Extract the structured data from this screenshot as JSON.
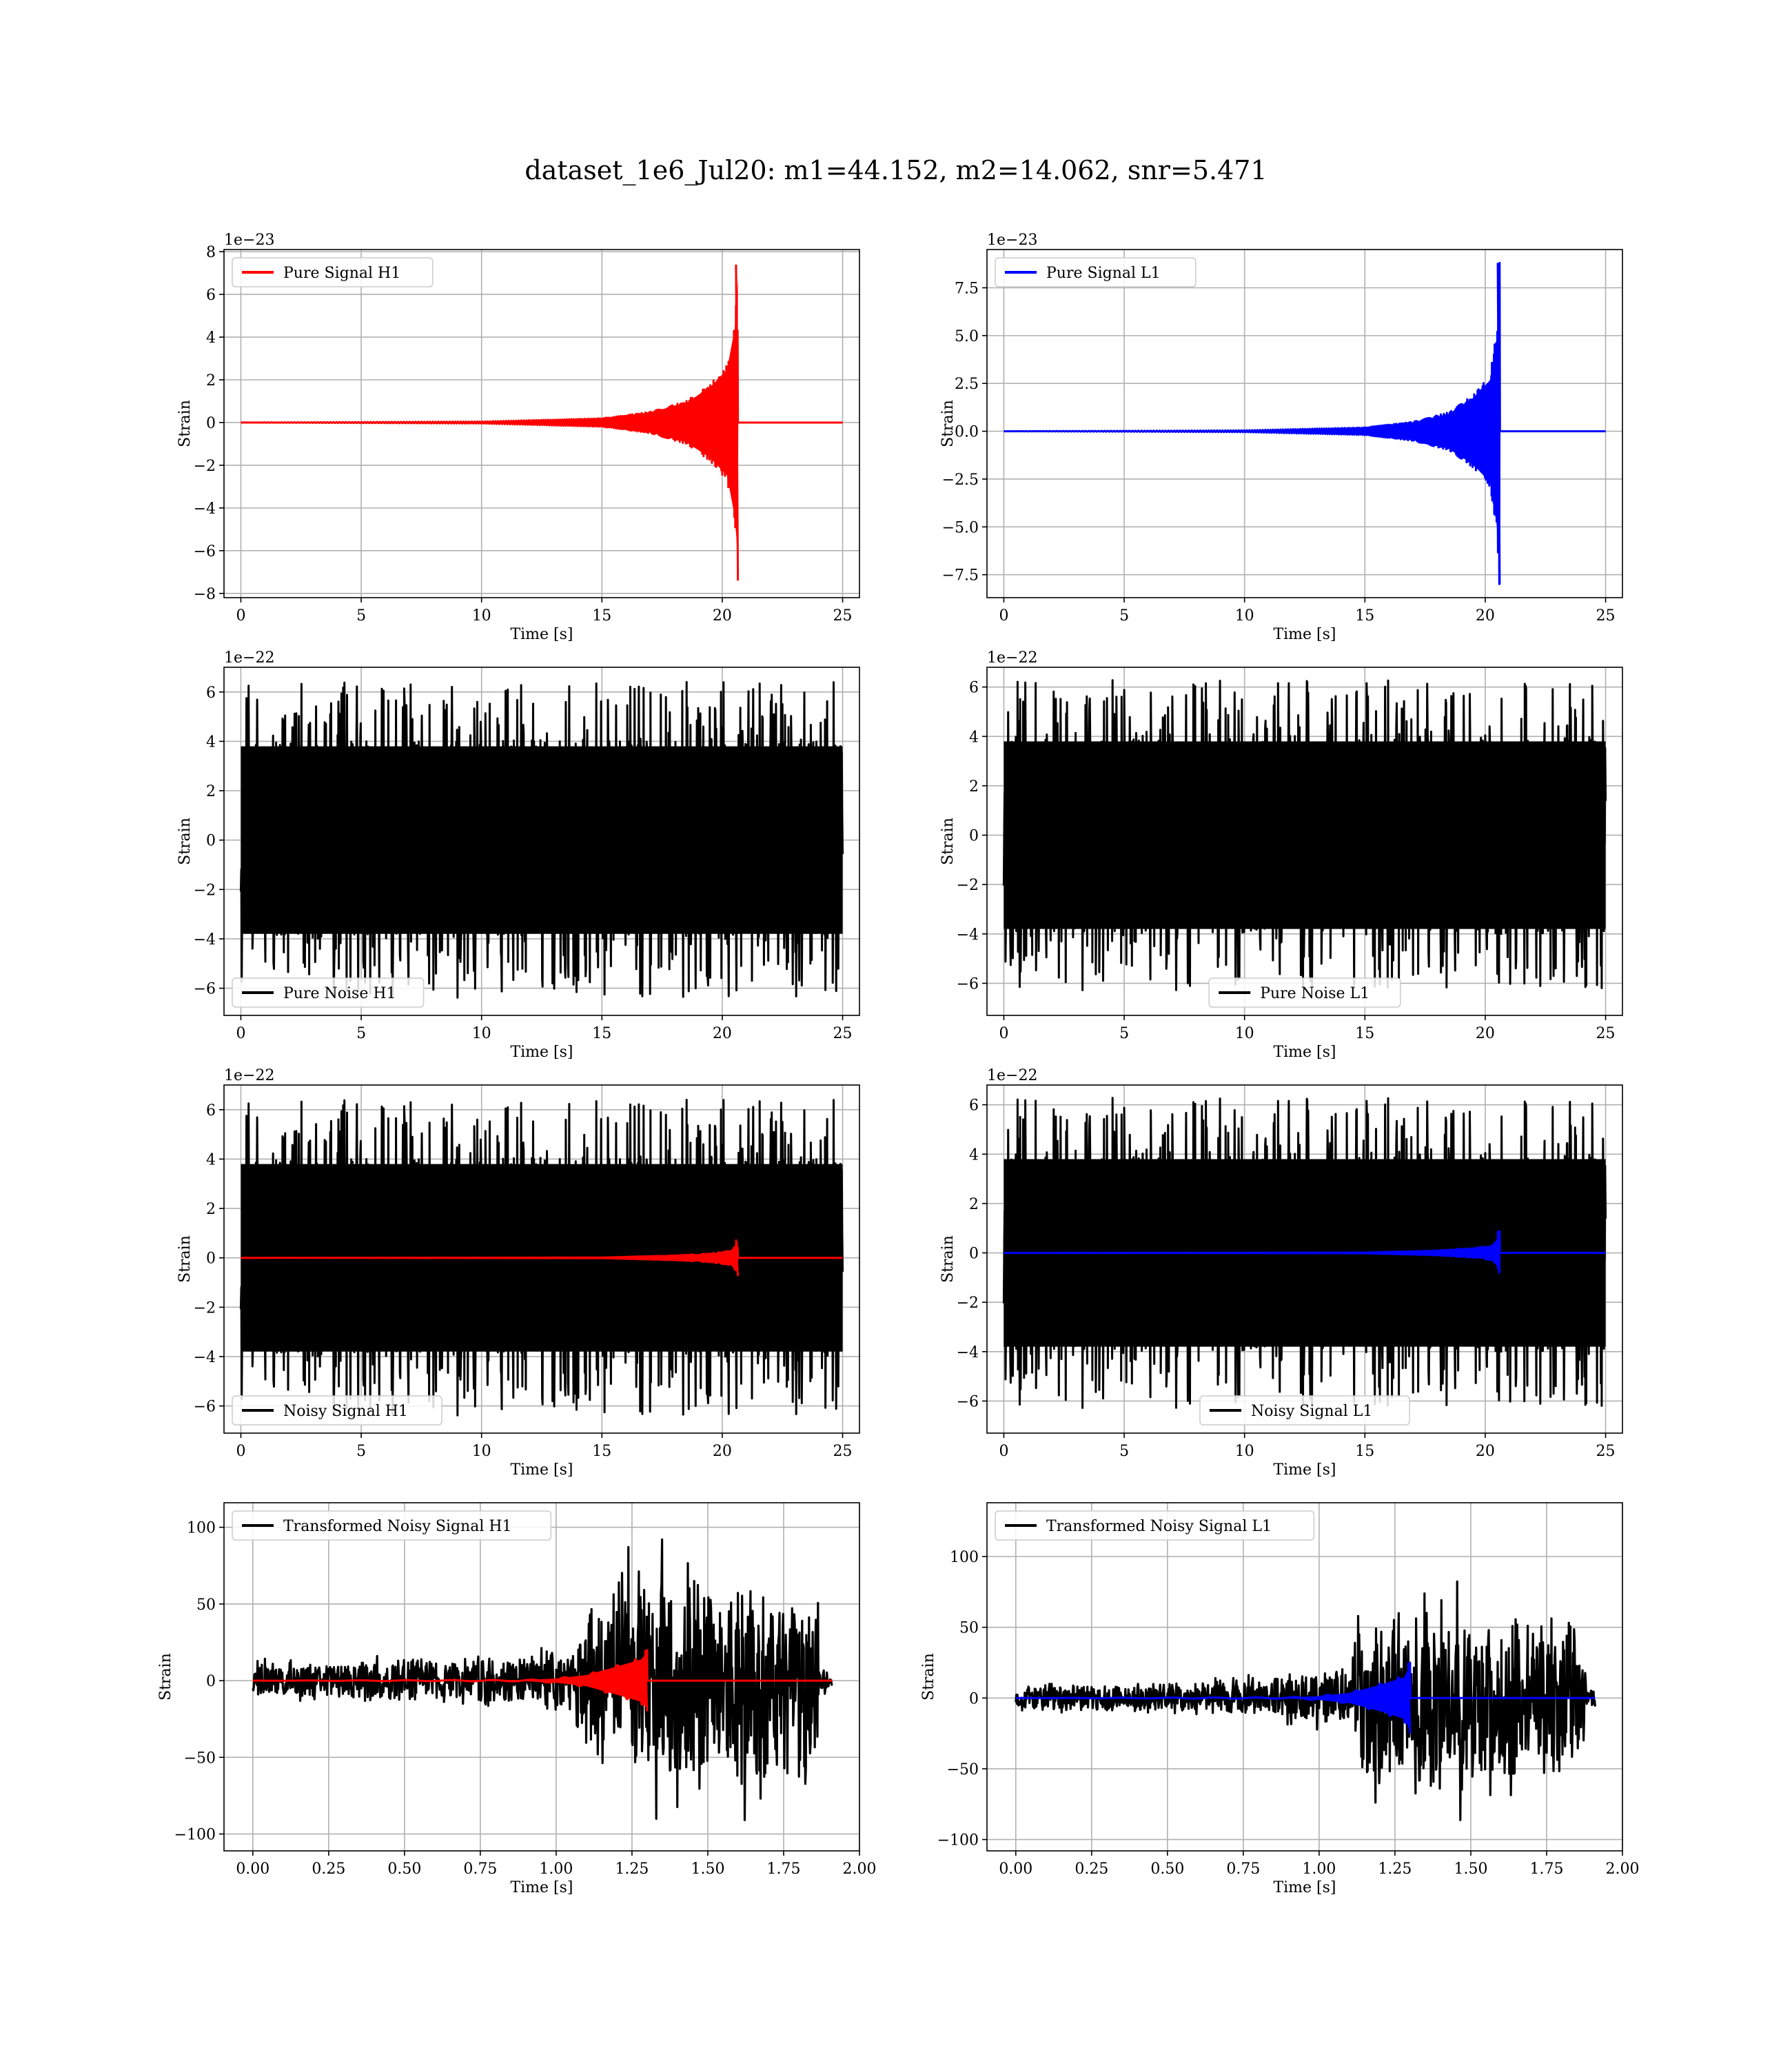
{
  "figure": {
    "title": "dataset_1e6_Jul20: m1=44.152, m2=14.062, snr=5.471"
  },
  "chart_data": [
    {
      "type": "line",
      "panel": "pure-signal-h1",
      "xlabel": "Time [s]",
      "ylabel": "Strain",
      "offset_text": "1e−23",
      "xlim": [
        -0.7,
        25.7
      ],
      "ylim": [
        -8.2,
        8.1
      ],
      "xticks": [
        0,
        5,
        10,
        15,
        20,
        25
      ],
      "xtick_labels": [
        "0",
        "5",
        "10",
        "15",
        "20",
        "25"
      ],
      "yticks": [
        -8,
        -6,
        -4,
        -2,
        0,
        2,
        4,
        6,
        8
      ],
      "ytick_labels": [
        "−8",
        "−6",
        "−4",
        "−2",
        "0",
        "2",
        "4",
        "6",
        "8"
      ],
      "grid": true,
      "legend_position": "upper left",
      "series": [
        {
          "name": "Pure Signal H1",
          "color": "#ff0000",
          "kind": "chirp",
          "x_end": 25,
          "merger_time": 20.65,
          "peak_amplitude": 7.4,
          "neg_peak_amplitude": -7.4,
          "envelope": [
            [
              0,
              0
            ],
            [
              10,
              0.05
            ],
            [
              15,
              0.2
            ],
            [
              17,
              0.5
            ],
            [
              18.5,
              1.0
            ],
            [
              19.5,
              1.8
            ],
            [
              20.2,
              2.7
            ],
            [
              20.55,
              5.0
            ],
            [
              20.65,
              7.4
            ]
          ]
        }
      ]
    },
    {
      "type": "line",
      "panel": "pure-signal-l1",
      "xlabel": "Time [s]",
      "ylabel": "Strain",
      "offset_text": "1e−23",
      "xlim": [
        -0.7,
        25.7
      ],
      "ylim": [
        -8.7,
        9.5
      ],
      "xticks": [
        0,
        5,
        10,
        15,
        20,
        25
      ],
      "xtick_labels": [
        "0",
        "5",
        "10",
        "15",
        "20",
        "25"
      ],
      "yticks": [
        -7.5,
        -5.0,
        -2.5,
        0.0,
        2.5,
        5.0,
        7.5
      ],
      "ytick_labels": [
        "−7.5",
        "−5.0",
        "−2.5",
        "0.0",
        "2.5",
        "5.0",
        "7.5"
      ],
      "grid": true,
      "legend_position": "upper left",
      "series": [
        {
          "name": "Pure Signal L1",
          "color": "#0000ff",
          "kind": "chirp",
          "x_end": 25,
          "merger_time": 20.6,
          "peak_amplitude": 8.8,
          "neg_peak_amplitude": -8.0,
          "envelope": [
            [
              0,
              0
            ],
            [
              10,
              0.05
            ],
            [
              15,
              0.2
            ],
            [
              17,
              0.5
            ],
            [
              18.5,
              1.0
            ],
            [
              19.5,
              1.9
            ],
            [
              20.2,
              2.9
            ],
            [
              20.5,
              5.5
            ],
            [
              20.6,
              8.8
            ]
          ]
        }
      ]
    },
    {
      "type": "line",
      "panel": "pure-noise-h1",
      "xlabel": "Time [s]",
      "ylabel": "Strain",
      "offset_text": "1e−22",
      "xlim": [
        -0.7,
        25.7
      ],
      "ylim": [
        -7.1,
        7.0
      ],
      "xticks": [
        0,
        5,
        10,
        15,
        20,
        25
      ],
      "xtick_labels": [
        "0",
        "5",
        "10",
        "15",
        "20",
        "25"
      ],
      "yticks": [
        -6,
        -4,
        -2,
        0,
        2,
        4,
        6
      ],
      "ytick_labels": [
        "−6",
        "−4",
        "−2",
        "0",
        "2",
        "4",
        "6"
      ],
      "grid": true,
      "legend_position": "lower left",
      "series": [
        {
          "name": "Pure Noise H1",
          "color": "#000000",
          "kind": "noise",
          "x_end": 25,
          "core_amplitude": 4.0,
          "max_amplitude": 6.4,
          "min_amplitude": -6.6,
          "seed": 11
        }
      ]
    },
    {
      "type": "line",
      "panel": "pure-noise-l1",
      "xlabel": "Time [s]",
      "ylabel": "Strain",
      "offset_text": "1e−22",
      "xlim": [
        -0.7,
        25.7
      ],
      "ylim": [
        -7.3,
        6.8
      ],
      "xticks": [
        0,
        5,
        10,
        15,
        20,
        25
      ],
      "xtick_labels": [
        "0",
        "5",
        "10",
        "15",
        "20",
        "25"
      ],
      "yticks": [
        -6,
        -4,
        -2,
        0,
        2,
        4,
        6
      ],
      "ytick_labels": [
        "−6",
        "−4",
        "−2",
        "0",
        "2",
        "4",
        "6"
      ],
      "grid": true,
      "legend_position": "lower center",
      "series": [
        {
          "name": "Pure Noise L1",
          "color": "#000000",
          "kind": "noise",
          "x_end": 25,
          "core_amplitude": 4.0,
          "max_amplitude": 6.3,
          "min_amplitude": -6.6,
          "seed": 23
        }
      ]
    },
    {
      "type": "line",
      "panel": "noisy-signal-h1",
      "xlabel": "Time [s]",
      "ylabel": "Strain",
      "offset_text": "1e−22",
      "xlim": [
        -0.7,
        25.7
      ],
      "ylim": [
        -7.1,
        7.0
      ],
      "xticks": [
        0,
        5,
        10,
        15,
        20,
        25
      ],
      "xtick_labels": [
        "0",
        "5",
        "10",
        "15",
        "20",
        "25"
      ],
      "yticks": [
        -6,
        -4,
        -2,
        0,
        2,
        4,
        6
      ],
      "ytick_labels": [
        "−6",
        "−4",
        "−2",
        "0",
        "2",
        "4",
        "6"
      ],
      "grid": true,
      "legend_position": "lower left",
      "series": [
        {
          "name": "Noisy Signal H1",
          "color": "#000000",
          "kind": "noise",
          "x_end": 25,
          "core_amplitude": 4.0,
          "max_amplitude": 6.4,
          "min_amplitude": -6.6,
          "seed": 11
        },
        {
          "color": "#ff0000",
          "kind": "chirp",
          "x_end": 25,
          "merger_time": 20.65,
          "peak_amplitude": 0.74,
          "neg_peak_amplitude": -0.74,
          "envelope": [
            [
              0,
              0
            ],
            [
              15,
              0.02
            ],
            [
              18,
              0.1
            ],
            [
              19.5,
              0.18
            ],
            [
              20.3,
              0.3
            ],
            [
              20.55,
              0.5
            ],
            [
              20.65,
              0.74
            ]
          ]
        }
      ]
    },
    {
      "type": "line",
      "panel": "noisy-signal-l1",
      "xlabel": "Time [s]",
      "ylabel": "Strain",
      "offset_text": "1e−22",
      "xlim": [
        -0.7,
        25.7
      ],
      "ylim": [
        -7.3,
        6.8
      ],
      "xticks": [
        0,
        5,
        10,
        15,
        20,
        25
      ],
      "xtick_labels": [
        "0",
        "5",
        "10",
        "15",
        "20",
        "25"
      ],
      "yticks": [
        -6,
        -4,
        -2,
        0,
        2,
        4,
        6
      ],
      "ytick_labels": [
        "−6",
        "−4",
        "−2",
        "0",
        "2",
        "4",
        "6"
      ],
      "grid": true,
      "legend_position": "lower center",
      "series": [
        {
          "name": "Noisy Signal L1",
          "color": "#000000",
          "kind": "noise",
          "x_end": 25,
          "core_amplitude": 4.0,
          "max_amplitude": 6.3,
          "min_amplitude": -6.6,
          "seed": 23
        },
        {
          "color": "#0000ff",
          "kind": "chirp",
          "x_end": 25,
          "merger_time": 20.6,
          "peak_amplitude": 0.88,
          "neg_peak_amplitude": -0.8,
          "envelope": [
            [
              0,
              0
            ],
            [
              15,
              0.02
            ],
            [
              18,
              0.1
            ],
            [
              19.5,
              0.2
            ],
            [
              20.3,
              0.3
            ],
            [
              20.5,
              0.55
            ],
            [
              20.6,
              0.88
            ]
          ]
        }
      ]
    },
    {
      "type": "line",
      "panel": "transformed-noisy-signal-h1",
      "xlabel": "Time [s]",
      "ylabel": "Strain",
      "offset_text": "",
      "xlim": [
        -0.095,
        2.0
      ],
      "ylim": [
        -111,
        116
      ],
      "xticks": [
        0.0,
        0.25,
        0.5,
        0.75,
        1.0,
        1.25,
        1.5,
        1.75,
        2.0
      ],
      "xtick_labels": [
        "0.00",
        "0.25",
        "0.50",
        "0.75",
        "1.00",
        "1.25",
        "1.50",
        "1.75",
        "2.00"
      ],
      "yticks": [
        -100,
        -50,
        0,
        50,
        100
      ],
      "ytick_labels": [
        "−100",
        "−50",
        "0",
        "50",
        "100"
      ],
      "grid": true,
      "legend_position": "upper left",
      "series": [
        {
          "name": "Transformed Noisy Signal H1",
          "color": "#000000",
          "kind": "transformed-noise",
          "x_end": 1.91,
          "max_amplitude": 92,
          "min_amplitude": -107,
          "seed": 37,
          "envelope": [
            [
              0,
              12
            ],
            [
              0.5,
              15
            ],
            [
              0.9,
              18
            ],
            [
              1.05,
              25
            ],
            [
              1.1,
              55
            ],
            [
              1.2,
              75
            ],
            [
              1.5,
              75
            ],
            [
              1.86,
              70
            ],
            [
              1.87,
              10
            ],
            [
              1.91,
              8
            ]
          ]
        },
        {
          "color": "#ff0000",
          "kind": "chirp",
          "x_end": 1.91,
          "merger_time": 1.3,
          "peak_amplitude": 20,
          "neg_peak_amplitude": -20,
          "envelope": [
            [
              0,
              0
            ],
            [
              0.9,
              0.5
            ],
            [
              1.0,
              1.5
            ],
            [
              1.1,
              4
            ],
            [
              1.2,
              10
            ],
            [
              1.28,
              15
            ],
            [
              1.3,
              20
            ]
          ]
        }
      ]
    },
    {
      "type": "line",
      "panel": "transformed-noisy-signal-l1",
      "xlabel": "Time [s]",
      "ylabel": "Strain",
      "offset_text": "",
      "xlim": [
        -0.095,
        2.0
      ],
      "ylim": [
        -108,
        138
      ],
      "xticks": [
        0.0,
        0.25,
        0.5,
        0.75,
        1.0,
        1.25,
        1.5,
        1.75,
        2.0
      ],
      "xtick_labels": [
        "0.00",
        "0.25",
        "0.50",
        "0.75",
        "1.00",
        "1.25",
        "1.50",
        "1.75",
        "2.00"
      ],
      "yticks": [
        -100,
        -50,
        0,
        50,
        100
      ],
      "ytick_labels": [
        "−100",
        "−50",
        "0",
        "50",
        "100"
      ],
      "grid": true,
      "legend_position": "upper left",
      "series": [
        {
          "name": "Transformed Noisy Signal L1",
          "color": "#000000",
          "kind": "transformed-noise",
          "x_end": 1.91,
          "max_amplitude": 127,
          "min_amplitude": -97,
          "seed": 53,
          "envelope": [
            [
              0,
              10
            ],
            [
              0.5,
              12
            ],
            [
              0.9,
              18
            ],
            [
              1.1,
              25
            ],
            [
              1.12,
              60
            ],
            [
              1.2,
              70
            ],
            [
              1.5,
              70
            ],
            [
              1.87,
              65
            ],
            [
              1.88,
              8
            ],
            [
              1.91,
              8
            ]
          ]
        },
        {
          "color": "#0000ff",
          "kind": "chirp",
          "x_end": 1.91,
          "merger_time": 1.3,
          "peak_amplitude": 25,
          "neg_peak_amplitude": -25,
          "envelope": [
            [
              0,
              0
            ],
            [
              0.9,
              0.5
            ],
            [
              1.0,
              1.5
            ],
            [
              1.1,
              4
            ],
            [
              1.2,
              10
            ],
            [
              1.28,
              16
            ],
            [
              1.3,
              25
            ]
          ]
        }
      ]
    }
  ]
}
